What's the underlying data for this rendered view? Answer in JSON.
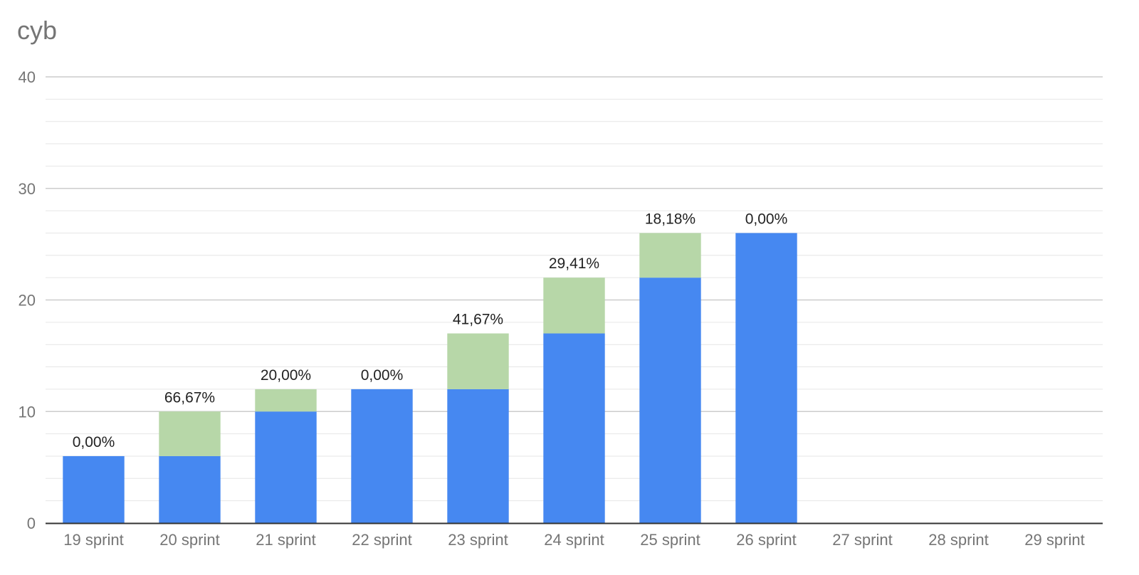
{
  "chart_data": {
    "type": "bar",
    "stacked": true,
    "title": "cyb",
    "xlabel": "",
    "ylabel": "",
    "categories": [
      "19 sprint",
      "20 sprint",
      "21 sprint",
      "22 sprint",
      "23 sprint",
      "24 sprint",
      "25 sprint",
      "26 sprint",
      "27 sprint",
      "28 sprint",
      "29 sprint"
    ],
    "series": [
      {
        "color": "#4688f1",
        "values": [
          6,
          6,
          10,
          12,
          12,
          17,
          22,
          26,
          0,
          0,
          0
        ]
      },
      {
        "color": "#b7d7a8",
        "values": [
          0,
          4,
          2,
          0,
          5,
          5,
          4,
          0,
          0,
          0,
          0
        ]
      }
    ],
    "data_labels": [
      "0,00%",
      "66,67%",
      "20,00%",
      "0,00%",
      "41,67%",
      "29,41%",
      "18,18%",
      "0,00%",
      "",
      "",
      ""
    ],
    "ylim": [
      0,
      40
    ],
    "yticks": [
      "0",
      "10",
      "20",
      "30",
      "40"
    ],
    "minor_gridlines": true,
    "grid": true,
    "legend": "none"
  }
}
